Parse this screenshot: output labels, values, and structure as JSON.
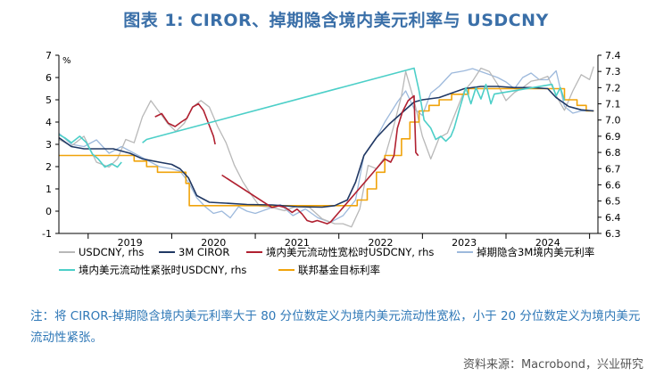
{
  "title": "图表 1:  CIROR、掉期隐含境内美元利率与 USDCNY",
  "note": "注：将 CIROR-掉期隐含境内美元利率大于 80 分位数定义为境内美元流动性宽松，小于 20 分位数定义为境内美元流动性紧张。",
  "source": "资料来源：Macrobond，兴业研究",
  "colors": {
    "usdcny": "#b8b8b8",
    "ciror": "#203864",
    "loose": "#b02030",
    "implied": "#9db9dc",
    "tight": "#4ccfc8",
    "fed": "#f0a30a",
    "axis": "#000000"
  },
  "chart_data": {
    "type": "line",
    "title": "",
    "x_ticks": [
      "2019",
      "2020",
      "2021",
      "2022",
      "2023",
      "2024"
    ],
    "x_range": [
      2018.65,
      2025.1
    ],
    "left_axis": {
      "unit": "%",
      "ticks": [
        "-1",
        "0",
        "1",
        "2",
        "3",
        "4",
        "5",
        "6",
        "7"
      ],
      "ylim": [
        -1,
        7
      ]
    },
    "right_axis": {
      "ticks": [
        "6.3",
        "6.4",
        "6.5",
        "6.6",
        "6.7",
        "6.8",
        "6.9",
        "7.0",
        "7.1",
        "7.2",
        "7.3",
        "7.4"
      ],
      "ylim": [
        6.3,
        7.4
      ]
    },
    "legend": [
      "USDCNY, rhs",
      "3M CIROR",
      "境内美元流动性宽松时USDCNY, rhs",
      "掉期隐含3M境内美元利率",
      "境内美元流动性紧张时USDCNY, rhs",
      "联邦基金目标利率"
    ],
    "series": [
      {
        "name": "USDCNY, rhs",
        "axis": "right",
        "x": [
          2018.65,
          2018.8,
          2018.95,
          2019.1,
          2019.25,
          2019.35,
          2019.45,
          2019.55,
          2019.65,
          2019.75,
          2019.85,
          2019.95,
          2020.05,
          2020.15,
          2020.25,
          2020.35,
          2020.45,
          2020.55,
          2020.65,
          2020.75,
          2020.85,
          2020.95,
          2021.05,
          2021.2,
          2021.35,
          2021.5,
          2021.65,
          2021.8,
          2021.95,
          2022.05,
          2022.15,
          2022.25,
          2022.35,
          2022.45,
          2022.55,
          2022.65,
          2022.75,
          2022.8,
          2022.9,
          2023.0,
          2023.1,
          2023.2,
          2023.3,
          2023.4,
          2023.5,
          2023.6,
          2023.7,
          2023.8,
          2023.9,
          2024.0,
          2024.1,
          2024.2,
          2024.3,
          2024.4,
          2024.5,
          2024.6,
          2024.7,
          2024.8,
          2024.9,
          2025.0,
          2025.05
        ],
        "y": [
          6.88,
          6.84,
          6.9,
          6.74,
          6.71,
          6.76,
          6.88,
          6.86,
          7.02,
          7.12,
          7.05,
          6.98,
          6.93,
          6.98,
          7.08,
          7.12,
          7.08,
          6.96,
          6.86,
          6.72,
          6.62,
          6.54,
          6.47,
          6.46,
          6.44,
          6.47,
          6.46,
          6.39,
          6.36,
          6.36,
          6.34,
          6.45,
          6.72,
          6.7,
          6.77,
          6.95,
          7.15,
          7.3,
          7.12,
          6.9,
          6.76,
          6.89,
          6.92,
          7.05,
          7.18,
          7.24,
          7.32,
          7.3,
          7.22,
          7.12,
          7.17,
          7.2,
          7.24,
          7.25,
          7.27,
          7.15,
          7.06,
          7.18,
          7.28,
          7.25,
          7.33
        ]
      },
      {
        "name": "3M CIROR",
        "axis": "left",
        "x": [
          2018.65,
          2018.8,
          2018.95,
          2019.1,
          2019.3,
          2019.5,
          2019.65,
          2019.85,
          2020.0,
          2020.1,
          2020.2,
          2020.3,
          2020.45,
          2020.7,
          2020.9,
          2021.2,
          2021.5,
          2021.8,
          2021.95,
          2022.1,
          2022.2,
          2022.3,
          2022.45,
          2022.6,
          2022.75,
          2022.9,
          2023.0,
          2023.2,
          2023.35,
          2023.5,
          2023.7,
          2023.9,
          2024.1,
          2024.3,
          2024.5,
          2024.6,
          2024.75,
          2024.9,
          2025.05
        ],
        "y": [
          3.3,
          2.9,
          2.8,
          2.8,
          2.8,
          2.6,
          2.35,
          2.2,
          2.1,
          1.9,
          1.5,
          0.7,
          0.4,
          0.35,
          0.3,
          0.28,
          0.2,
          0.18,
          0.25,
          0.5,
          1.3,
          2.5,
          3.3,
          3.9,
          4.4,
          4.9,
          5.0,
          5.1,
          5.3,
          5.5,
          5.6,
          5.6,
          5.55,
          5.55,
          5.5,
          5.1,
          4.7,
          4.55,
          4.5
        ]
      },
      {
        "name": "境内美元流动性宽松时USDCNY, rhs",
        "axis": "right",
        "x": [
          2019.8,
          2019.88,
          2019.96,
          2020.04,
          2020.12,
          2020.18,
          2020.25,
          2020.32,
          2020.38,
          2020.44,
          2020.5,
          2020.52,
          2020.55,
          2020.6,
          2021.2,
          2021.28,
          2021.36,
          2021.44,
          2021.5,
          2021.56,
          2021.62,
          2021.68,
          2021.74,
          2021.8,
          2021.86,
          2021.9,
          2022.55,
          2022.62,
          2022.66,
          2022.7,
          2022.76,
          2022.83,
          2022.9,
          2022.92,
          2022.95
        ],
        "y": [
          7.02,
          7.04,
          6.98,
          6.96,
          6.99,
          7.01,
          7.08,
          7.1,
          7.06,
          6.98,
          6.9,
          6.85,
          null,
          6.66,
          6.46,
          6.47,
          6.46,
          6.43,
          6.45,
          6.42,
          6.38,
          6.37,
          6.38,
          6.37,
          6.36,
          6.37,
          6.76,
          6.74,
          6.78,
          6.95,
          7.05,
          7.12,
          7.15,
          6.8,
          6.78
        ]
      },
      {
        "name": "掉期隐含3M境内美元利率",
        "axis": "left",
        "x": [
          2018.65,
          2018.8,
          2018.95,
          2019.1,
          2019.25,
          2019.4,
          2019.55,
          2019.7,
          2019.85,
          2020.0,
          2020.1,
          2020.2,
          2020.3,
          2020.4,
          2020.5,
          2020.6,
          2020.7,
          2020.8,
          2020.9,
          2021.0,
          2021.15,
          2021.3,
          2021.45,
          2021.6,
          2021.75,
          2021.9,
          2022.05,
          2022.2,
          2022.3,
          2022.45,
          2022.55,
          2022.7,
          2022.8,
          2022.9,
          2023.0,
          2023.1,
          2023.2,
          2023.35,
          2023.5,
          2023.6,
          2023.75,
          2023.9,
          2024.0,
          2024.1,
          2024.2,
          2024.3,
          2024.4,
          2024.5,
          2024.6,
          2024.7,
          2024.8,
          2024.9,
          2025.05
        ],
        "y": [
          3.5,
          3.0,
          2.9,
          3.2,
          2.6,
          2.9,
          2.6,
          2.3,
          2.0,
          1.9,
          1.8,
          1.3,
          0.6,
          0.2,
          -0.1,
          0.0,
          -0.3,
          0.2,
          0.0,
          -0.1,
          0.1,
          0.3,
          -0.2,
          0.1,
          -0.3,
          -0.5,
          -0.2,
          0.5,
          2.5,
          3.3,
          4.0,
          4.9,
          5.4,
          4.6,
          4.3,
          5.3,
          5.6,
          6.2,
          6.3,
          6.4,
          6.2,
          6.0,
          5.8,
          5.5,
          6.0,
          6.2,
          5.9,
          5.9,
          6.3,
          4.7,
          4.4,
          4.5,
          4.5
        ]
      },
      {
        "name": "境内美元流动性紧张时USDCNY, rhs",
        "axis": "right",
        "x": [
          2018.65,
          2018.72,
          2018.8,
          2018.9,
          2018.98,
          2019.05,
          2019.12,
          2019.2,
          2019.28,
          2019.35,
          2019.4,
          2019.6,
          2019.65,
          2019.7,
          2022.9,
          2022.96,
          2023.02,
          2023.1,
          2023.16,
          2023.22,
          2023.28,
          2023.34,
          2023.38,
          2023.45,
          2023.52,
          2023.58,
          2023.64,
          2023.7,
          2023.76,
          2023.82,
          2023.86,
          2024.55,
          2024.6,
          2024.65,
          2024.7
        ],
        "y": [
          6.91,
          6.89,
          6.86,
          6.9,
          6.86,
          6.79,
          6.76,
          6.71,
          6.73,
          6.71,
          6.74,
          null,
          6.86,
          6.88,
          7.32,
          7.18,
          7.0,
          6.95,
          6.88,
          6.9,
          6.87,
          6.9,
          6.95,
          7.08,
          7.2,
          7.1,
          7.2,
          7.13,
          7.22,
          7.1,
          7.16,
          7.22,
          7.15,
          7.2,
          7.12
        ]
      },
      {
        "name": "联邦基金目标利率",
        "axis": "left",
        "step": true,
        "x": [
          2018.65,
          2018.97,
          2019.55,
          2019.7,
          2019.83,
          2020.17,
          2020.21,
          2022.22,
          2022.34,
          2022.45,
          2022.55,
          2022.75,
          2022.85,
          2022.96,
          2023.08,
          2023.2,
          2023.35,
          2023.55,
          2024.7,
          2024.85,
          2024.96,
          2025.05
        ],
        "y": [
          2.5,
          2.5,
          2.25,
          2.0,
          1.75,
          1.25,
          0.25,
          0.5,
          1.0,
          1.75,
          2.5,
          3.25,
          4.0,
          4.5,
          4.75,
          5.0,
          5.25,
          5.5,
          5.0,
          4.75,
          4.5,
          4.5
        ]
      }
    ]
  }
}
